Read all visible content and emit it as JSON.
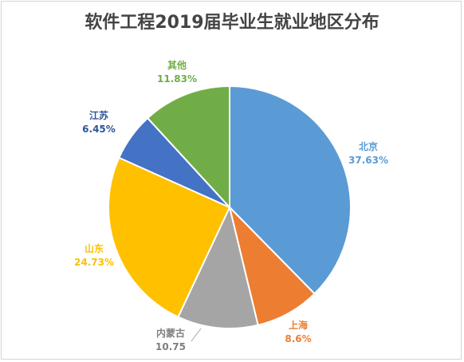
{
  "chart_data": {
    "type": "pie",
    "title": "软件工程2019届毕业生就业地区分布",
    "slices": [
      {
        "label": "北京",
        "value": 37.63,
        "value_text": "37.63%",
        "color": "#5B9BD5"
      },
      {
        "label": "上海",
        "value": 8.6,
        "value_text": "8.6%",
        "color": "#ED7D31"
      },
      {
        "label": "内蒙古",
        "value": 10.75,
        "value_text": "10.75",
        "color": "#A5A5A5"
      },
      {
        "label": "山东",
        "value": 24.73,
        "value_text": "24.73%",
        "color": "#FFC000"
      },
      {
        "label": "江苏",
        "value": 6.45,
        "value_text": "6.45%",
        "color": "#4472C4"
      },
      {
        "label": "其他",
        "value": 11.83,
        "value_text": "11.83%",
        "color": "#70AD47"
      }
    ],
    "label_colors": {
      "北京": "#5B9BD5",
      "上海": "#ED7D31",
      "内蒙古": "#7F7F7F",
      "山东": "#FFC000",
      "江苏": "#2F5597",
      "其他": "#70AD47"
    },
    "start_angle": "12 o'clock",
    "direction": "clockwise",
    "legend": "none"
  }
}
